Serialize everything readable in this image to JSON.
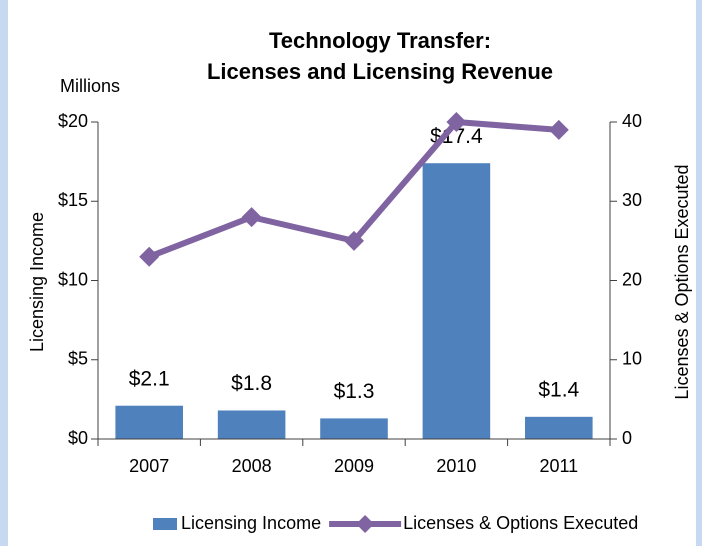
{
  "chart_data": {
    "type": "bar_line",
    "title": [
      "Technology Transfer:",
      "Licenses and Licensing Revenue"
    ],
    "units_label": "Millions",
    "ylabel": "Licensing Income",
    "y2label": "Licenses & Options Executed",
    "categories": [
      "2007",
      "2008",
      "2009",
      "2010",
      "2011"
    ],
    "series": [
      {
        "name": "Licensing Income",
        "type": "bar",
        "color": "#4f81bd",
        "axis": "y",
        "values": [
          2.1,
          1.8,
          1.3,
          17.4,
          1.4
        ],
        "value_labels": [
          "$2.1",
          "$1.8",
          "$1.3",
          "$17.4",
          "$1.4"
        ]
      },
      {
        "name": "Licenses & Options Executed",
        "type": "line",
        "color": "#8064a2",
        "axis": "y2",
        "values": [
          23,
          28,
          25,
          40,
          39
        ]
      }
    ],
    "ylim": [
      0,
      20
    ],
    "yticks": [
      {
        "value": 0,
        "label": "$0"
      },
      {
        "value": 5,
        "label": "$5"
      },
      {
        "value": 10,
        "label": "$10"
      },
      {
        "value": 15,
        "label": "$15"
      },
      {
        "value": 20,
        "label": "$20"
      }
    ],
    "y2lim": [
      0,
      40
    ],
    "y2ticks": [
      0,
      10,
      20,
      30,
      40
    ],
    "legend": "bottom"
  }
}
